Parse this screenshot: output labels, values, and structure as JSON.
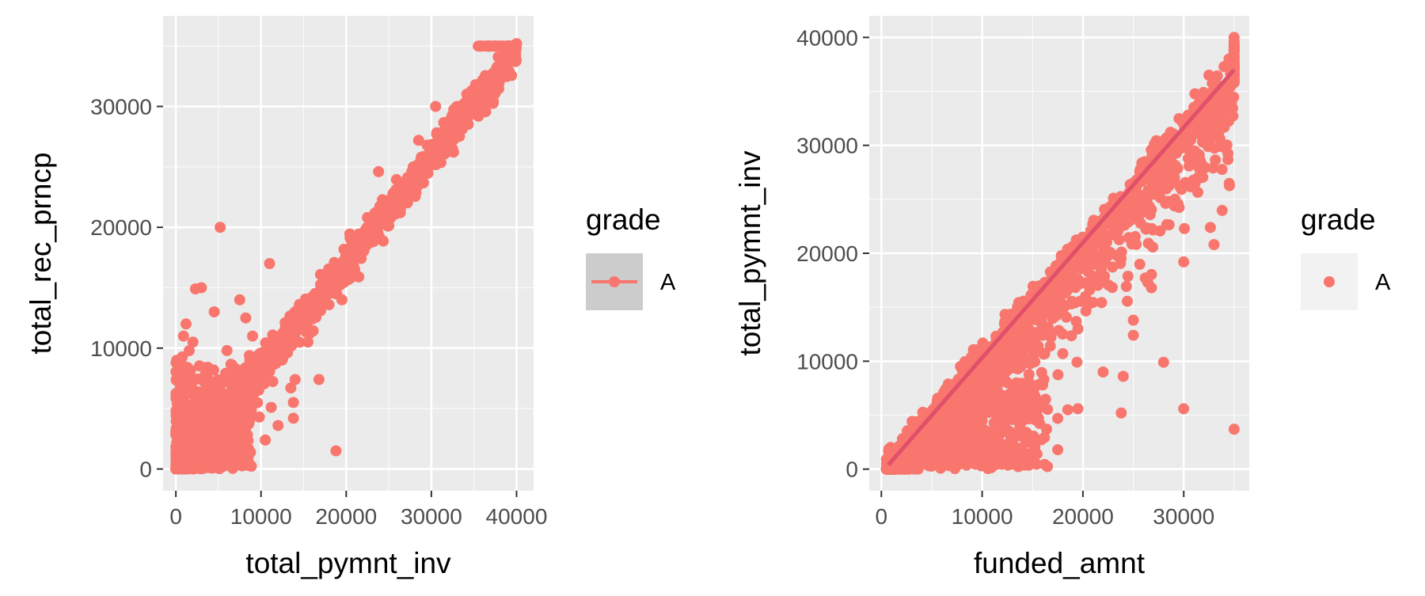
{
  "colors": {
    "panel_bg": "#ebebeb",
    "grid_major": "#ffffff",
    "point": "#F8766D",
    "smooth_line": "#E0506A",
    "left_key_bg": "#cccccc",
    "right_key_bg": "#f2f2f2"
  },
  "chart_data": [
    {
      "type": "scatter",
      "title": "",
      "xlabel": "total_pymnt_inv",
      "ylabel": "total_rec_prncp",
      "xlim": [
        -1500,
        42000
      ],
      "ylim": [
        -1800,
        37500
      ],
      "x_ticks": [
        0,
        10000,
        20000,
        30000,
        40000
      ],
      "x_tick_labels": [
        "0",
        "10000",
        "20000",
        "30000",
        "40000"
      ],
      "y_ticks": [
        0,
        10000,
        20000,
        30000
      ],
      "y_tick_labels": [
        "0",
        "10000",
        "20000",
        "30000"
      ],
      "grid": true,
      "legend": {
        "title": "grade",
        "entries": [
          "A"
        ],
        "key": "line+point",
        "position": "right"
      },
      "series": [
        {
          "name": "A",
          "band": {
            "description": "dense diagonal band",
            "x_range": [
              0,
              40000
            ],
            "slope": 0.875,
            "spread": 1100
          },
          "low_cluster": {
            "x_range": [
              0,
              9000
            ],
            "y_range": [
              0,
              10000
            ]
          },
          "points": [
            [
              5200,
              20000
            ],
            [
              3000,
              15000
            ],
            [
              2300,
              14900
            ],
            [
              11000,
              17000
            ],
            [
              1200,
              12000
            ],
            [
              4500,
              13000
            ],
            [
              7500,
              14000
            ],
            [
              900,
              11000
            ],
            [
              2000,
              10500
            ],
            [
              6000,
              9800
            ],
            [
              9000,
              11000
            ],
            [
              8200,
              12500
            ],
            [
              14000,
              7400
            ],
            [
              13500,
              6700
            ],
            [
              13800,
              5500
            ],
            [
              13800,
              4200
            ],
            [
              16800,
              7400
            ],
            [
              10500,
              2400
            ],
            [
              18800,
              1500
            ],
            [
              8500,
              1000
            ],
            [
              6300,
              500
            ],
            [
              6700,
              1900
            ],
            [
              3000,
              2400
            ],
            [
              4200,
              200
            ],
            [
              12000,
              3600
            ],
            [
              9800,
              4300
            ],
            [
              11200,
              5100
            ],
            [
              15500,
              10500
            ],
            [
              7000,
              8300
            ],
            [
              2500,
              6400
            ],
            [
              1000,
              4000
            ],
            [
              3500,
              7900
            ],
            [
              5800,
              3000
            ],
            [
              16000,
              12400
            ],
            [
              12500,
              11000
            ],
            [
              19500,
              14000
            ],
            [
              22000,
              18500
            ],
            [
              23800,
              24600
            ],
            [
              25500,
              22800
            ],
            [
              28500,
              27200
            ],
            [
              30500,
              30000
            ],
            [
              33000,
              30000
            ],
            [
              32000,
              28200
            ],
            [
              35200,
              31800
            ],
            [
              36500,
              32500
            ],
            [
              38000,
              34000
            ],
            [
              40000,
              35200
            ],
            [
              39000,
              35000
            ],
            [
              37000,
              35000
            ],
            [
              35500,
              35000
            ],
            [
              21000,
              16500
            ],
            [
              17500,
              15200
            ],
            [
              24500,
              21300
            ],
            [
              26500,
              23400
            ],
            [
              29500,
              26800
            ]
          ],
          "points_note": "representative sample of the dense point cloud"
        }
      ],
      "smooth_line": {
        "x": [
          500,
          40000
        ],
        "y": [
          400,
          35400
        ]
      }
    },
    {
      "type": "scatter",
      "title": "",
      "xlabel": "funded_amnt",
      "ylabel": "total_pymnt_inv",
      "xlim": [
        -1200,
        36500
      ],
      "ylim": [
        -2000,
        42000
      ],
      "x_ticks": [
        0,
        10000,
        20000,
        30000
      ],
      "x_tick_labels": [
        "0",
        "10000",
        "20000",
        "30000"
      ],
      "y_ticks": [
        0,
        10000,
        20000,
        30000,
        40000
      ],
      "y_tick_labels": [
        "0",
        "10000",
        "20000",
        "30000",
        "40000"
      ],
      "grid": true,
      "legend": {
        "title": "grade",
        "entries": [
          "A"
        ],
        "key": "point",
        "position": "right"
      },
      "series": [
        {
          "name": "A",
          "band": {
            "description": "dense diagonal band",
            "x_range": [
              500,
              35000
            ],
            "slope": 1.09,
            "spread": 2000
          },
          "points": [
            [
              30000,
              19200
            ],
            [
              26800,
              16800
            ],
            [
              25000,
              13800
            ],
            [
              25000,
              12400
            ],
            [
              28000,
              9900
            ],
            [
              22000,
              9000
            ],
            [
              24000,
              8600
            ],
            [
              30000,
              5600
            ],
            [
              35000,
              3700
            ],
            [
              23800,
              5200
            ],
            [
              19500,
              5600
            ],
            [
              18500,
              5500
            ],
            [
              17500,
              4700
            ],
            [
              17500,
              1800
            ],
            [
              15000,
              2400
            ],
            [
              12000,
              3400
            ],
            [
              16000,
              7800
            ],
            [
              18000,
              10700
            ],
            [
              16000,
              12400
            ],
            [
              14000,
              10000
            ],
            [
              19500,
              13000
            ],
            [
              15000,
              14000
            ],
            [
              13500,
              9800
            ],
            [
              12500,
              8000
            ],
            [
              11000,
              6000
            ],
            [
              10000,
              4500
            ],
            [
              9000,
              3800
            ],
            [
              7500,
              2200
            ],
            [
              8500,
              7000
            ],
            [
              6500,
              4800
            ],
            [
              21000,
              20500
            ],
            [
              23000,
              22500
            ],
            [
              25000,
              26000
            ],
            [
              27000,
              28500
            ],
            [
              29000,
              31000
            ],
            [
              31000,
              33500
            ],
            [
              33000,
              35000
            ],
            [
              34500,
              38000
            ],
            [
              35000,
              40000
            ],
            [
              35000,
              39000
            ],
            [
              35000,
              37000
            ],
            [
              35000,
              36000
            ],
            [
              32500,
              36500
            ],
            [
              24000,
              23500
            ],
            [
              20000,
              19000
            ]
          ],
          "points_note": "representative sample of the dense point cloud"
        }
      ],
      "smooth_line": {
        "x": [
          700,
          35000
        ],
        "y": [
          400,
          37000
        ]
      }
    }
  ]
}
